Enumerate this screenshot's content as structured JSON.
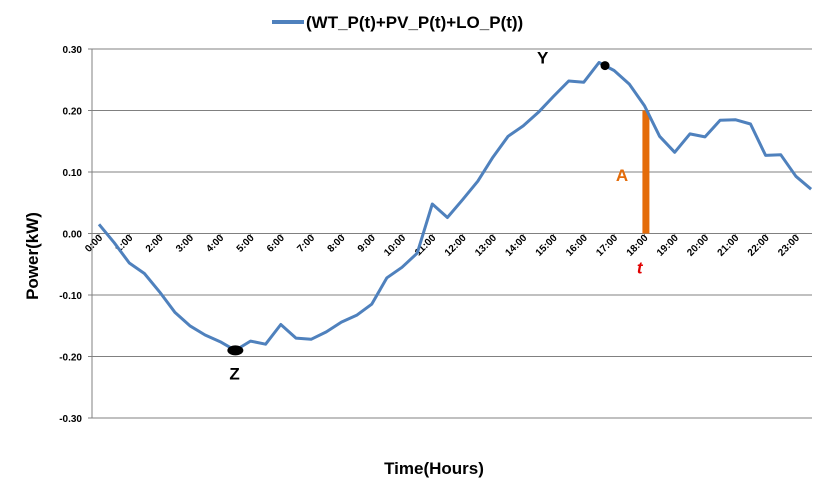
{
  "chart_data": {
    "type": "line",
    "legend": "(WT_P(t)+PV_P(t)+LO_P(t))",
    "xlabel": "Time(Hours)",
    "ylabel": "Power(kW)",
    "ylim": [
      -0.3,
      0.3
    ],
    "y_ticks": [
      "0.30",
      "0.20",
      "0.10",
      "0.00",
      "-0.10",
      "-0.20",
      "-0.30"
    ],
    "x_ticks": [
      "0:00",
      "1:00",
      "2:00",
      "3:00",
      "4:00",
      "5:00",
      "6:00",
      "7:00",
      "8:00",
      "9:00",
      "10:00",
      "11:00",
      "12:00",
      "13:00",
      "14:00",
      "15:00",
      "16:00",
      "17:00",
      "18:00",
      "19:00",
      "20:00",
      "21:00",
      "22:00",
      "23:00"
    ],
    "series": [
      {
        "name": "(WT_P(t)+PV_P(t)+LO_P(t))",
        "color": "#4f81bd",
        "x": [
          0,
          0.5,
          1,
          1.5,
          2,
          2.5,
          3,
          3.5,
          4,
          4.5,
          5,
          5.5,
          6,
          6.5,
          7,
          7.5,
          8,
          8.5,
          9,
          9.5,
          10,
          10.5,
          11,
          11.5,
          12,
          12.5,
          13,
          13.5,
          14,
          14.5,
          15,
          15.5,
          16,
          16.5,
          17,
          17.5,
          18,
          18.5,
          19,
          19.5,
          20,
          20.5,
          21,
          21.5,
          22,
          22.5,
          23,
          23.5
        ],
        "values": [
          0.015,
          -0.015,
          -0.048,
          -0.065,
          -0.095,
          -0.128,
          -0.15,
          -0.165,
          -0.176,
          -0.19,
          -0.175,
          -0.18,
          -0.148,
          -0.17,
          -0.172,
          -0.16,
          -0.144,
          -0.133,
          -0.115,
          -0.072,
          -0.055,
          -0.032,
          0.048,
          0.026,
          0.055,
          0.085,
          0.124,
          0.158,
          0.175,
          0.197,
          0.223,
          0.248,
          0.246,
          0.278,
          0.265,
          0.243,
          0.208,
          0.158,
          0.132,
          0.162,
          0.157,
          0.184,
          0.185,
          0.178,
          0.127,
          0.128,
          0.093,
          0.072
        ]
      }
    ],
    "annotations": {
      "Y": {
        "label": "Y",
        "x": 16.7,
        "y": 0.273,
        "color": "#000000"
      },
      "Z": {
        "label": "Z",
        "x": 4.5,
        "y": -0.19,
        "color": "#000000"
      },
      "A": {
        "label": "A",
        "x": 18.05,
        "y_from": 0.0,
        "y_to": 0.2,
        "color": "#e46c0a"
      },
      "t": {
        "label": "t",
        "x": 18.05,
        "color": "#e00000"
      }
    }
  }
}
